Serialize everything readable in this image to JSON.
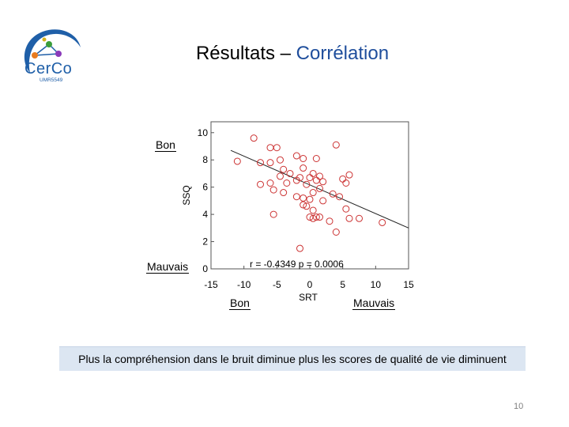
{
  "logo": {
    "text": "CerCo",
    "subtext": "UMR5549"
  },
  "title": {
    "main": "Résultats – ",
    "accent": "Corrélation"
  },
  "labels": {
    "y_good": "Bon",
    "y_bad": "Mauvais",
    "x_good": "Bon",
    "x_bad": "Mauvais"
  },
  "caption": "Plus la compréhension dans le bruit diminue plus les scores de qualité de vie diminuent",
  "page_number": "10",
  "colors": {
    "marker": "#cc3333",
    "accent": "#1f4e9c",
    "caption_bg": "#dce6f2"
  },
  "chart_data": {
    "type": "scatter",
    "xlabel": "SRT",
    "ylabel": "SSQ",
    "xlim": [
      -15,
      15
    ],
    "ylim": [
      0,
      10.8
    ],
    "xticks": [
      -15,
      -10,
      -5,
      0,
      5,
      10,
      15
    ],
    "yticks": [
      0,
      2,
      4,
      6,
      8,
      10
    ],
    "annotation": "r = -0.4349 p = 0.0006",
    "regression": {
      "x": [
        -12,
        15
      ],
      "y": [
        8.7,
        3.0
      ]
    },
    "points": [
      [
        -8.5,
        9.6
      ],
      [
        -11,
        7.9
      ],
      [
        -7.5,
        7.8
      ],
      [
        -6,
        8.9
      ],
      [
        -5,
        8.9
      ],
      [
        -4.5,
        8.0
      ],
      [
        -6,
        7.8
      ],
      [
        -2,
        8.3
      ],
      [
        -1,
        8.1
      ],
      [
        1,
        8.1
      ],
      [
        4,
        9.1
      ],
      [
        -7.5,
        6.2
      ],
      [
        -6,
        6.3
      ],
      [
        -4.5,
        6.8
      ],
      [
        -4,
        7.3
      ],
      [
        -3.5,
        6.3
      ],
      [
        -3,
        7.0
      ],
      [
        -1.5,
        6.7
      ],
      [
        -1,
        7.4
      ],
      [
        0,
        6.7
      ],
      [
        0.5,
        7.0
      ],
      [
        1,
        6.5
      ],
      [
        1.5,
        6.8
      ],
      [
        2,
        6.4
      ],
      [
        5,
        6.6
      ],
      [
        6,
        6.9
      ],
      [
        5.5,
        6.3
      ],
      [
        -2,
        6.5
      ],
      [
        -0.5,
        6.2
      ],
      [
        -5.5,
        5.8
      ],
      [
        -4,
        5.6
      ],
      [
        -2,
        5.3
      ],
      [
        -1,
        5.2
      ],
      [
        0.5,
        5.6
      ],
      [
        1.5,
        5.9
      ],
      [
        -5.5,
        4.0
      ],
      [
        -1,
        4.7
      ],
      [
        -0.5,
        4.6
      ],
      [
        0,
        5.1
      ],
      [
        0.5,
        4.3
      ],
      [
        2,
        5.0
      ],
      [
        3.5,
        5.5
      ],
      [
        4.5,
        5.3
      ],
      [
        0,
        3.8
      ],
      [
        0.5,
        3.7
      ],
      [
        1,
        3.8
      ],
      [
        3,
        3.5
      ],
      [
        5.5,
        4.4
      ],
      [
        6,
        3.7
      ],
      [
        7.5,
        3.7
      ],
      [
        11,
        3.4
      ],
      [
        4,
        2.7
      ],
      [
        -1.5,
        1.5
      ],
      [
        1.5,
        3.8
      ]
    ]
  }
}
